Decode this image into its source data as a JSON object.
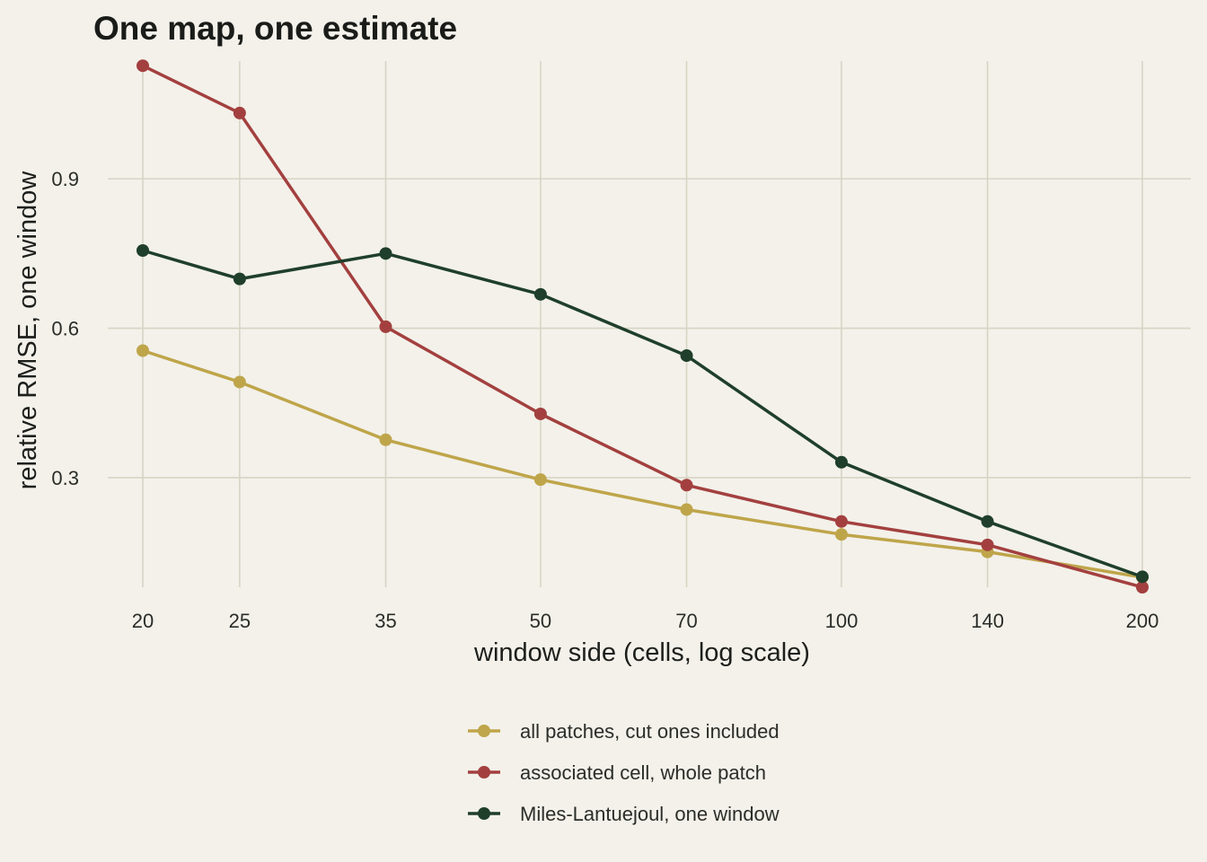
{
  "chart_data": {
    "type": "line",
    "title": "One map, one estimate",
    "xlabel": "window side (cells, log scale)",
    "ylabel": "relative RMSE, one window",
    "x_scale": "log",
    "x": [
      20,
      25,
      35,
      50,
      70,
      100,
      140,
      200
    ],
    "x_tick_labels": [
      "20",
      "25",
      "35",
      "50",
      "70",
      "100",
      "140",
      "200"
    ],
    "ylim": [
      0.08,
      1.14
    ],
    "y_ticks": [
      0.3,
      0.6,
      0.9
    ],
    "y_tick_labels": [
      "0.3",
      "0.6",
      "0.9"
    ],
    "grid": true,
    "legend_position": "bottom",
    "series": [
      {
        "name": "all patches, cut ones included",
        "color": "#bfa54a",
        "values": [
          0.555,
          0.492,
          0.376,
          0.296,
          0.236,
          0.186,
          0.151,
          0.1
        ]
      },
      {
        "name": "associated cell, whole patch",
        "color": "#a3403f",
        "values": [
          1.127,
          1.032,
          0.603,
          0.428,
          0.285,
          0.212,
          0.165,
          0.08
        ]
      },
      {
        "name": "Miles-Lantuejoul, one window",
        "color": "#1f3f2b",
        "values": [
          0.756,
          0.699,
          0.75,
          0.668,
          0.545,
          0.331,
          0.212,
          0.101
        ]
      }
    ]
  }
}
